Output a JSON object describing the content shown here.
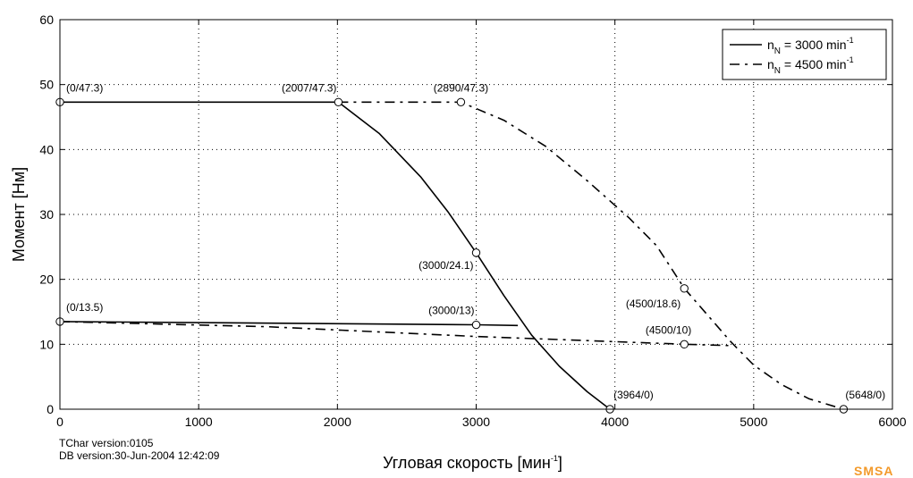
{
  "chart_data": {
    "type": "line",
    "xlabel": "Угловая скорость [мин",
    "xlabel_sup": "-1",
    "xlabel_close": "]",
    "ylabel": "Момент [Нм]",
    "xlim": [
      0,
      6000
    ],
    "ylim": [
      0,
      60
    ],
    "xticks": [
      0,
      1000,
      2000,
      3000,
      4000,
      5000,
      6000
    ],
    "yticks": [
      0,
      10,
      20,
      30,
      40,
      50,
      60
    ],
    "grid": true,
    "legend_position": "top-right",
    "series": [
      {
        "name": "n_N = 3000 min^-1",
        "legend": {
          "prefix": "n",
          "sub": "N",
          "mid": " = 3000 min",
          "sup": "-1"
        },
        "style": "solid",
        "curves": [
          [
            [
              0,
              47.3
            ],
            [
              2007,
              47.3
            ],
            [
              2300,
              42.5
            ],
            [
              2600,
              35.8
            ],
            [
              2800,
              30.3
            ],
            [
              3000,
              24.1
            ],
            [
              3200,
              17.5
            ],
            [
              3400,
              11.4
            ],
            [
              3600,
              6.6
            ],
            [
              3800,
              2.7
            ],
            [
              3964,
              0
            ]
          ],
          [
            [
              0,
              13.5
            ],
            [
              3000,
              13
            ],
            [
              3300,
              12.9
            ]
          ]
        ]
      },
      {
        "name": "n_N = 4500 min^-1",
        "legend": {
          "prefix": "n",
          "sub": "N",
          "mid": " = 4500 min",
          "sup": "-1"
        },
        "style": "dashdot",
        "curves": [
          [
            [
              2007,
              47.3
            ],
            [
              2890,
              47.3
            ],
            [
              3200,
              44.5
            ],
            [
              3500,
              40.5
            ],
            [
              3800,
              35.2
            ],
            [
              4100,
              29.5
            ],
            [
              4300,
              25.2
            ],
            [
              4500,
              18.6
            ],
            [
              4700,
              13.7
            ],
            [
              4830,
              10.5
            ],
            [
              5000,
              6.8
            ],
            [
              5200,
              3.8
            ],
            [
              5400,
              1.6
            ],
            [
              5648,
              0
            ]
          ],
          [
            [
              0,
              13.5
            ],
            [
              1500,
              12.7
            ],
            [
              3000,
              11.2
            ],
            [
              3500,
              10.8
            ],
            [
              4500,
              10
            ],
            [
              4830,
              9.8
            ]
          ]
        ]
      }
    ],
    "markers": [
      {
        "x": 0,
        "y": 47.3,
        "label": "(0/47.3)",
        "anchor": "start",
        "dx": 7,
        "dy": -12
      },
      {
        "x": 2007,
        "y": 47.3,
        "label": "(2007/47.3)",
        "anchor": "end",
        "dx": -2,
        "dy": -12
      },
      {
        "x": 2890,
        "y": 47.3,
        "label": "(2890/47.3)",
        "anchor": "middle",
        "dx": 0,
        "dy": -12
      },
      {
        "x": 3000,
        "y": 24.1,
        "label": "(3000/24.1)",
        "anchor": "end",
        "dx": -3,
        "dy": 18
      },
      {
        "x": 4500,
        "y": 18.6,
        "label": "(4500/18.6)",
        "anchor": "end",
        "dx": -4,
        "dy": 21
      },
      {
        "x": 0,
        "y": 13.5,
        "label": "(0/13.5)",
        "anchor": "start",
        "dx": 7,
        "dy": -12
      },
      {
        "x": 3000,
        "y": 13,
        "label": "(3000/13)",
        "anchor": "end",
        "dx": -2,
        "dy": -12
      },
      {
        "x": 4500,
        "y": 10,
        "label": "(4500/10)",
        "anchor": "end",
        "dx": 8,
        "dy": -12
      },
      {
        "x": 3964,
        "y": 0,
        "label": "(3964/0)",
        "anchor": "start",
        "dx": 4,
        "dy": -12
      },
      {
        "x": 5648,
        "y": 0,
        "label": "(5648/0)",
        "anchor": "start",
        "dx": 2,
        "dy": -12
      }
    ]
  },
  "footer": {
    "line1": "TChar version:0105",
    "line2": "DB version:30-Jun-2004 12:42:09"
  },
  "logo_text": "SMSA"
}
